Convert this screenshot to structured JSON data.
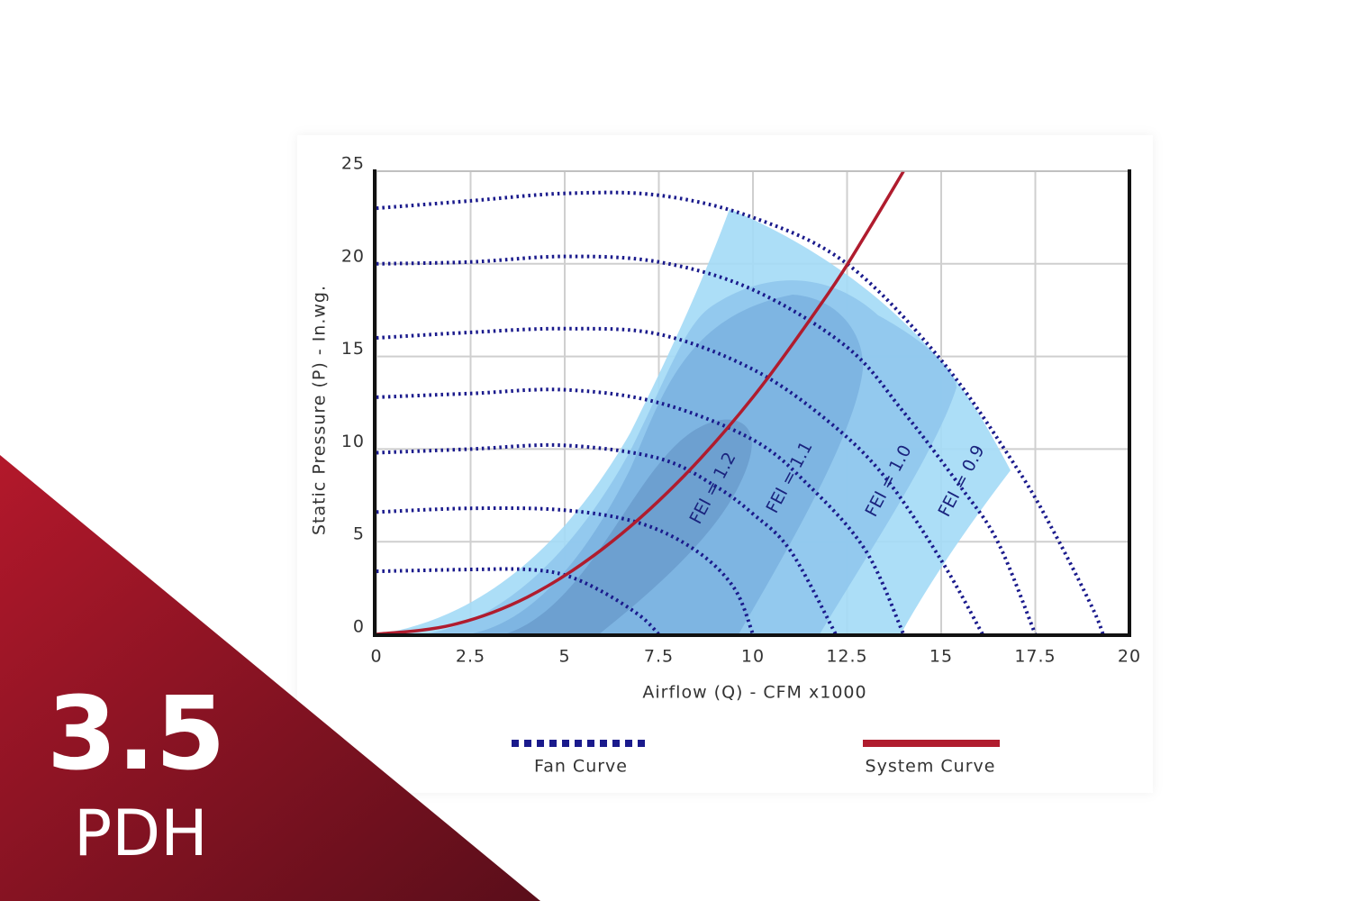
{
  "chart_data": {
    "type": "line",
    "x_label": "Airflow (Q) - CFM x1000",
    "y_label": "Static Pressure (P) - In.wg.",
    "xlim": [
      0,
      20
    ],
    "ylim": [
      0,
      25
    ],
    "xticks": [
      0,
      2.5,
      5,
      7.5,
      10,
      12.5,
      15,
      17.5,
      20
    ],
    "yticks": [
      0,
      5,
      10,
      15,
      20,
      25
    ],
    "grid": true,
    "annotations": [
      "FEI = 1.2",
      "FEI = 1.1",
      "FEI = 1.0",
      "FEI = 0.9"
    ],
    "series": [
      {
        "name": "Fan Curve",
        "color": "#1a1a8c",
        "style": "dotted",
        "curves": [
          {
            "x": [
              0,
              2.5,
              5,
              7.5,
              10,
              12.5,
              15,
              17,
              18,
              19,
              19.3
            ],
            "values": [
              23,
              23.4,
              23.8,
              23.7,
              22.5,
              20,
              14.8,
              9,
              5.5,
              1.5,
              0
            ]
          },
          {
            "x": [
              0,
              2.5,
              5,
              7.5,
              10,
              12.5,
              14,
              15.5,
              16.5,
              17.5
            ],
            "values": [
              20,
              20.1,
              20.4,
              20.1,
              18.6,
              15.5,
              12,
              8,
              5,
              0
            ]
          },
          {
            "x": [
              0,
              2.5,
              5,
              7.5,
              10,
              12,
              13.5,
              15,
              16.1
            ],
            "values": [
              16,
              16.3,
              16.5,
              16.2,
              14.3,
              11.5,
              8.5,
              4,
              0
            ]
          },
          {
            "x": [
              0,
              2.5,
              5,
              7.5,
              10,
              11.5,
              13,
              14
            ],
            "values": [
              12.8,
              13,
              13.2,
              12.5,
              10.5,
              8,
              4.5,
              0
            ]
          },
          {
            "x": [
              0,
              2.5,
              5,
              7.5,
              9,
              10,
              11,
              12.2
            ],
            "values": [
              9.8,
              10,
              10.2,
              9.5,
              8,
              6.5,
              4.5,
              0
            ]
          },
          {
            "x": [
              0,
              2.5,
              5,
              7,
              8.5,
              9.5,
              10
            ],
            "values": [
              6.6,
              6.8,
              6.7,
              6,
              4.5,
              2.5,
              0
            ]
          },
          {
            "x": [
              0,
              2.5,
              4,
              5,
              6,
              7,
              7.5
            ],
            "values": [
              3.4,
              3.5,
              3.5,
              3.2,
              2.3,
              1,
              0
            ]
          }
        ]
      },
      {
        "name": "System Curve",
        "color": "#b01c2e",
        "style": "solid",
        "x": [
          0,
          2,
          4,
          6,
          8,
          10,
          12,
          13,
          14
        ],
        "values": [
          0,
          0.5,
          2,
          4.6,
          8.2,
          12.8,
          18.4,
          21.6,
          25
        ]
      }
    ]
  },
  "badge": {
    "value": "3.5",
    "unit": "PDH"
  }
}
